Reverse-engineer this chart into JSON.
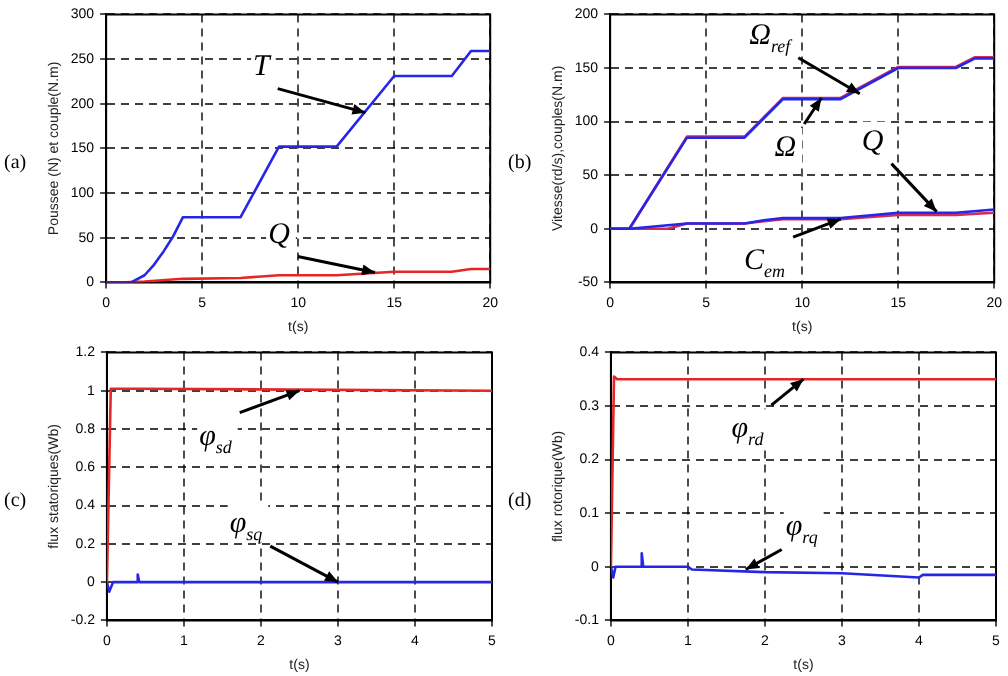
{
  "chart_data": [
    {
      "type": "line",
      "xlabel": "t(s)",
      "ylabel": "Poussee (N) et couple(N.m)",
      "xlim": [
        0,
        20
      ],
      "xticks": [
        0,
        5,
        10,
        15,
        20
      ],
      "ylim": [
        0,
        300
      ],
      "yticks": [
        0,
        50,
        100,
        150,
        200,
        250,
        300
      ],
      "grid": true,
      "legend": false,
      "marker": "none",
      "line_style": "solid",
      "series": [
        {
          "color": "#2626e6",
          "x": [
            0,
            1.3,
            2,
            2.5,
            3,
            3.5,
            4,
            7,
            9,
            12,
            15,
            18,
            19,
            20
          ],
          "values": [
            0,
            0,
            8,
            20,
            35,
            52,
            73,
            73,
            152,
            152,
            231,
            231,
            259,
            259
          ]
        },
        {
          "color": "#e62626",
          "x": [
            0,
            1,
            2,
            4,
            7,
            9,
            12,
            15,
            18,
            19,
            20
          ],
          "values": [
            0,
            0,
            1,
            4,
            5,
            8,
            8,
            12,
            12,
            15,
            15
          ]
        }
      ],
      "annotations": [
        "(a)",
        {
          "text": "T",
          "x": 13.5,
          "y": 190
        },
        {
          "text": "Q",
          "x": 14,
          "y": 11
        }
      ]
    },
    {
      "type": "line",
      "xlabel": "t(s)",
      "ylabel": "Vitesse(rd/s),couples(N.m)",
      "xlim": [
        0,
        20
      ],
      "xticks": [
        0,
        5,
        10,
        15,
        20
      ],
      "ylim": [
        -50,
        200
      ],
      "yticks": [
        -50,
        0,
        50,
        100,
        150,
        200
      ],
      "grid": true,
      "legend": false,
      "marker": "none",
      "line_style": "solid",
      "series": [
        {
          "color": "#2626e6",
          "x": [
            0,
            1,
            4,
            7,
            9,
            12,
            15,
            18,
            19,
            20
          ],
          "values": [
            0,
            0,
            85,
            85,
            121,
            121,
            150,
            150,
            159,
            159
          ]
        },
        {
          "color": "#d42a5a",
          "x": [
            0,
            1,
            4,
            7,
            9,
            12,
            15,
            18,
            19,
            20
          ],
          "values": [
            0,
            0,
            86,
            86,
            122,
            122,
            151,
            151,
            160,
            160
          ]
        },
        {
          "color": "#2626e6",
          "x": [
            0,
            1,
            4,
            7,
            8,
            9,
            12,
            15,
            18,
            20
          ],
          "values": [
            0,
            0,
            5,
            5,
            8,
            10,
            10,
            15,
            15,
            18
          ]
        },
        {
          "color": "#d42a5a",
          "x": [
            0,
            3,
            4,
            7,
            9,
            12,
            15,
            18,
            20
          ],
          "values": [
            0,
            0,
            5,
            5,
            9,
            9,
            13,
            13,
            15
          ]
        }
      ],
      "annotations": [
        "(b)",
        {
          "text": "Ω$_{ref}$",
          "x": 13,
          "y": 126
        },
        {
          "text": "Ω",
          "x": 11,
          "y": 122
        },
        {
          "text": "Q",
          "x": 17,
          "y": 16
        },
        {
          "text": "C$_{em}$",
          "x": 12,
          "y": 9
        }
      ]
    },
    {
      "type": "line",
      "xlabel": "t(s)",
      "ylabel": "flux statoriques(Wb)",
      "xlim": [
        0,
        5
      ],
      "xticks": [
        0,
        1,
        2,
        3,
        4,
        5
      ],
      "ylim": [
        -0.2,
        1.2
      ],
      "yticks": [
        -0.2,
        0,
        0.2,
        0.4,
        0.6,
        0.8,
        1,
        1.2
      ],
      "grid": true,
      "legend": false,
      "marker": "none",
      "line_style": "solid",
      "series": [
        {
          "color": "#e62626",
          "x": [
            0,
            0.05,
            0.4,
            5
          ],
          "values": [
            0,
            1.01,
            1.01,
            1
          ]
        },
        {
          "color": "#2626e6",
          "x": [
            0,
            0.03,
            0.08,
            0.38,
            0.4,
            0.42,
            5
          ],
          "values": [
            0,
            -0.05,
            0,
            0,
            0.04,
            0,
            0
          ]
        }
      ],
      "annotations": [
        "(c)",
        {
          "text": "φ$_{sd}$",
          "x": 2.5,
          "y": 1
        },
        {
          "text": "φ$_{sq}$",
          "x": 3,
          "y": 0
        }
      ]
    },
    {
      "type": "line",
      "xlabel": "t(s)",
      "ylabel": "flux rotorique(Wb)",
      "xlim": [
        0,
        5
      ],
      "xticks": [
        0,
        1,
        2,
        3,
        4,
        5
      ],
      "ylim": [
        -0.1,
        0.4
      ],
      "yticks": [
        -0.1,
        0,
        0.1,
        0.2,
        0.3,
        0.4
      ],
      "grid": true,
      "legend": false,
      "marker": "none",
      "line_style": "solid",
      "series": [
        {
          "color": "#e62626",
          "x": [
            0,
            0.04,
            0.08,
            5
          ],
          "values": [
            0,
            0.355,
            0.35,
            0.35
          ]
        },
        {
          "color": "#2626e6",
          "x": [
            0,
            0.03,
            0.06,
            0.38,
            0.4,
            0.42,
            1,
            1.05,
            2,
            3,
            4,
            4.05,
            5
          ],
          "values": [
            0,
            -0.02,
            0,
            0,
            0.025,
            0,
            0,
            -0.005,
            -0.01,
            -0.012,
            -0.02,
            -0.015,
            -0.015
          ]
        }
      ],
      "annotations": [
        "(d)",
        {
          "text": "φ$_{rd}$",
          "x": 2.5,
          "y": 0.35
        },
        {
          "text": "φ$_{rq}$",
          "x": 1.75,
          "y": -0.005
        }
      ]
    }
  ]
}
